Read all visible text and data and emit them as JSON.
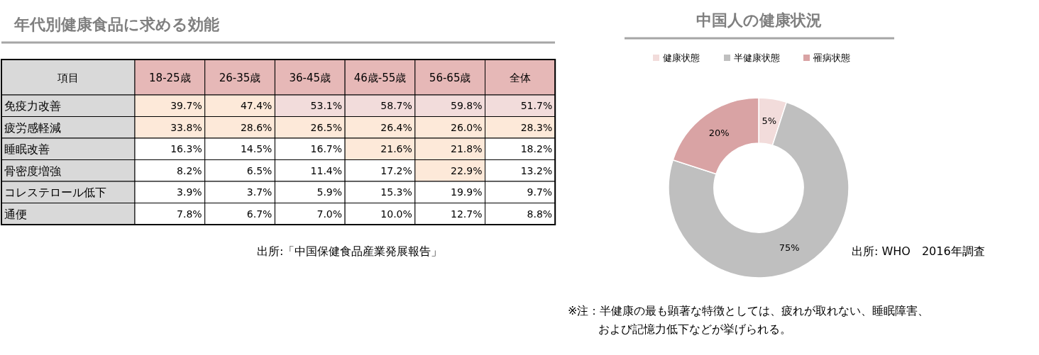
{
  "chart_data": [
    {
      "type": "heatmap",
      "title": "年代別健康食品に求める効能",
      "ylabel": "項目",
      "categories": [
        "18-25歳",
        "26-35歳",
        "36-45歳",
        "46歳-55歳",
        "56-65歳",
        "全体"
      ],
      "y_categories": [
        "免疫力改善",
        "疲労感軽減",
        "睡眠改善",
        "骨密度増強",
        "コレステロール低下",
        "通便"
      ],
      "cells": [
        [
          39.7,
          47.4,
          53.1,
          58.7,
          59.8,
          51.7
        ],
        [
          33.8,
          28.6,
          26.5,
          26.4,
          26.0,
          28.3
        ],
        [
          16.3,
          14.5,
          16.7,
          21.6,
          21.8,
          18.2
        ],
        [
          8.2,
          6.5,
          11.4,
          17.2,
          22.9,
          13.2
        ],
        [
          3.9,
          3.7,
          5.9,
          15.3,
          19.9,
          9.7
        ],
        [
          7.8,
          6.7,
          7.0,
          10.0,
          12.7,
          8.8
        ]
      ],
      "cell_labels": [
        [
          "39.7%",
          "47.4%",
          "53.1%",
          "58.7%",
          "59.8%",
          "51.7%"
        ],
        [
          "33.8%",
          "28.6%",
          "26.5%",
          "26.4%",
          "26.0%",
          "28.3%"
        ],
        [
          "16.3%",
          "14.5%",
          "16.7%",
          "21.6%",
          "21.8%",
          "18.2%"
        ],
        [
          "8.2%",
          "6.5%",
          "11.4%",
          "17.2%",
          "22.9%",
          "13.2%"
        ],
        [
          "3.9%",
          "3.7%",
          "5.9%",
          "15.3%",
          "19.9%",
          "9.7%"
        ],
        [
          "7.8%",
          "6.7%",
          "7.0%",
          "10.0%",
          "12.7%",
          "8.8%"
        ]
      ],
      "annotations": [
        "出所:「中国保健食品産業発展報告」"
      ]
    },
    {
      "type": "donut",
      "title": "中国人の健康状況",
      "categories": [
        "健康状態",
        "半健康状態",
        "罹病状態"
      ],
      "values": [
        5,
        75,
        20
      ],
      "colors": [
        "#f2dcdb",
        "#bfbfbf",
        "#d9a3a4"
      ],
      "value_labels": [
        "5%",
        "75%",
        "20%"
      ],
      "legend": "top",
      "annotations": [
        "出所: WHO　2016年調査",
        "※注：半健康の最も顕著な特徴としては、疲れが取れない、睡眠障害、",
        "および記憶力低下などが挙げられる。"
      ]
    }
  ]
}
